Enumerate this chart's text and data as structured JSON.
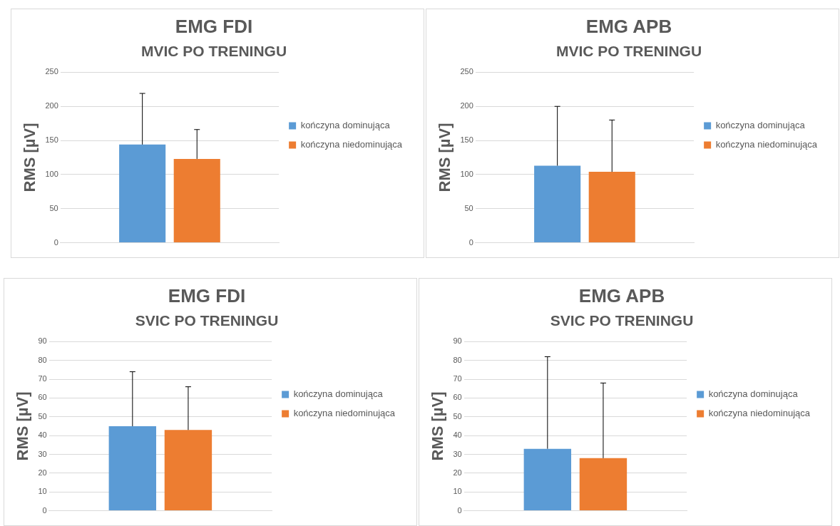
{
  "chart_data": [
    {
      "type": "bar",
      "title": "EMG FDI",
      "subtitle": "MVIC PO TRENINGU",
      "ylabel": "RMS [µV]",
      "categories": [
        null
      ],
      "ylim": [
        0,
        250
      ],
      "yticks": [
        0,
        50,
        100,
        150,
        200,
        250
      ],
      "grid": "y",
      "legend": "right",
      "series": [
        {
          "name": "kończyna dominująca",
          "color": "#5b9bd5",
          "values": [
            144
          ],
          "errors": [
            [
              144,
              219
            ]
          ]
        },
        {
          "name": "kończyna niedominująca",
          "color": "#ed7d31",
          "values": [
            123
          ],
          "errors": [
            [
              123,
              166
            ]
          ]
        }
      ]
    },
    {
      "type": "bar",
      "title": "EMG APB",
      "subtitle": "MVIC PO TRENINGU",
      "ylabel": "RMS [µV]",
      "categories": [
        null
      ],
      "ylim": [
        0,
        250
      ],
      "yticks": [
        0,
        50,
        100,
        150,
        200,
        250
      ],
      "grid": "y",
      "legend": "right",
      "series": [
        {
          "name": "kończyna dominująca",
          "color": "#5b9bd5",
          "values": [
            113
          ],
          "errors": [
            [
              113,
              200
            ]
          ]
        },
        {
          "name": "kończyna niedominująca",
          "color": "#ed7d31",
          "values": [
            104
          ],
          "errors": [
            [
              104,
              180
            ]
          ]
        }
      ]
    },
    {
      "type": "bar",
      "title": "EMG FDI",
      "subtitle": "SVIC PO TRENINGU",
      "ylabel": "RMS [µV]",
      "categories": [
        null
      ],
      "ylim": [
        0,
        90
      ],
      "yticks": [
        0,
        10,
        20,
        30,
        40,
        50,
        60,
        70,
        80,
        90
      ],
      "grid": "y",
      "legend": "right",
      "series": [
        {
          "name": "kończyna dominująca",
          "color": "#5b9bd5",
          "values": [
            45
          ],
          "errors": [
            [
              45,
              74
            ]
          ]
        },
        {
          "name": "kończyna niedominująca",
          "color": "#ed7d31",
          "values": [
            43
          ],
          "errors": [
            [
              43,
              66
            ]
          ]
        }
      ]
    },
    {
      "type": "bar",
      "title": "EMG APB",
      "subtitle": "SVIC PO TRENINGU",
      "ylabel": "RMS [µV]",
      "categories": [
        null
      ],
      "ylim": [
        0,
        90
      ],
      "yticks": [
        0,
        10,
        20,
        30,
        40,
        50,
        60,
        70,
        80,
        90
      ],
      "grid": "y",
      "legend": "right",
      "series": [
        {
          "name": "kończyna dominująca",
          "color": "#5b9bd5",
          "values": [
            33
          ],
          "errors": [
            [
              33,
              82
            ]
          ]
        },
        {
          "name": "kończyna niedominująca",
          "color": "#ed7d31",
          "values": [
            28
          ],
          "errors": [
            [
              28,
              68
            ]
          ]
        }
      ]
    }
  ]
}
